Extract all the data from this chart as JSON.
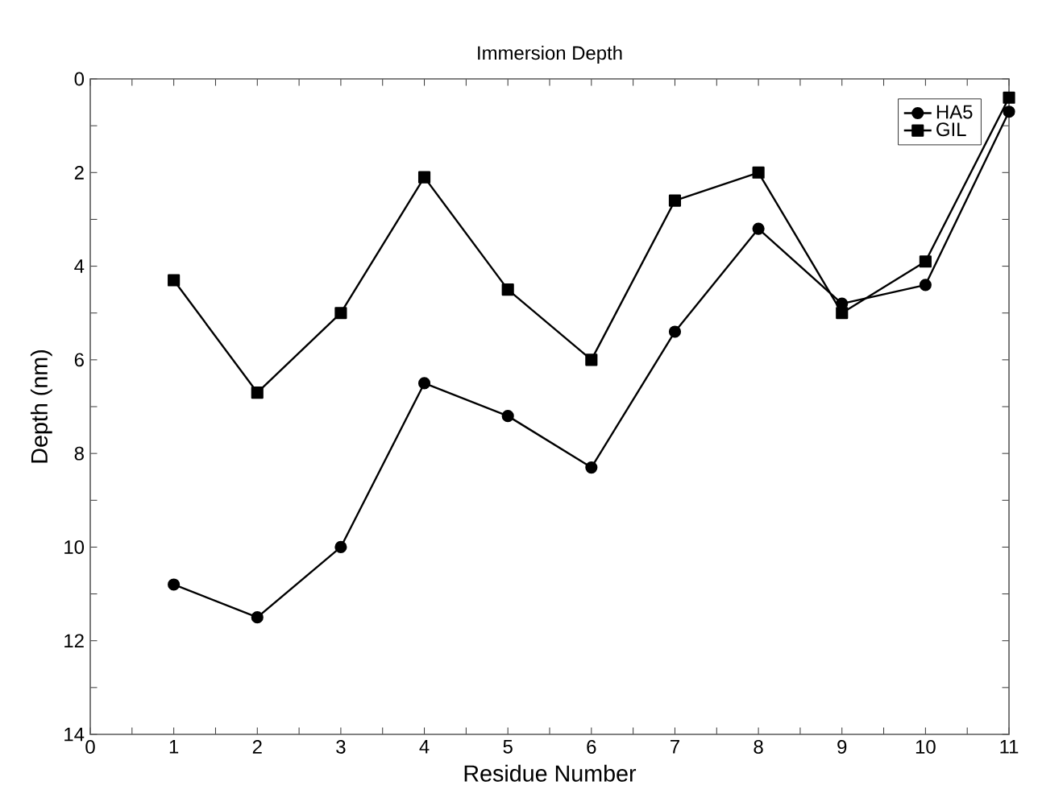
{
  "chart_data": {
    "type": "line",
    "title": "Immersion Depth",
    "xlabel": "Residue Number",
    "ylabel": "Depth (nm)",
    "x": [
      1,
      2,
      3,
      4,
      5,
      6,
      7,
      8,
      9,
      10,
      11
    ],
    "series": [
      {
        "name": "HA5",
        "color": "#000000",
        "marker": "circle",
        "values": [
          10.8,
          11.5,
          10.0,
          6.5,
          7.2,
          8.3,
          5.4,
          3.2,
          4.8,
          4.4,
          0.7
        ]
      },
      {
        "name": "GIL",
        "color": "#000000",
        "marker": "square",
        "values": [
          4.3,
          6.7,
          5.0,
          2.1,
          4.5,
          6.0,
          2.6,
          2.0,
          5.0,
          3.9,
          0.4
        ]
      }
    ],
    "xlim": [
      0,
      11
    ],
    "ylim": [
      14,
      0
    ],
    "xticks": [
      0,
      {
        "value": 0.5,
        "label": null
      },
      1,
      {
        "value": 1.5,
        "label": null
      },
      2,
      {
        "value": 2.5,
        "label": null
      },
      3,
      {
        "value": 3.5,
        "label": null
      },
      4,
      {
        "value": 4.5,
        "label": null
      },
      5,
      {
        "value": 5.5,
        "label": null
      },
      6,
      {
        "value": 6.5,
        "label": null
      },
      7,
      {
        "value": 7.5,
        "label": null
      },
      8,
      {
        "value": 8.5,
        "label": null
      },
      9,
      {
        "value": 9.5,
        "label": null
      },
      10,
      {
        "value": 10.5,
        "label": null
      },
      11
    ],
    "yticks": [
      0,
      {
        "value": 1,
        "label": null
      },
      2,
      {
        "value": 3,
        "label": null
      },
      4,
      {
        "value": 5,
        "label": null
      },
      6,
      {
        "value": 7,
        "label": null
      },
      8,
      {
        "value": 9,
        "label": null
      },
      10,
      {
        "value": 11,
        "label": null
      },
      12,
      {
        "value": 13,
        "label": null
      },
      14
    ],
    "grid": false,
    "legend": "top right",
    "line_style": "solid"
  }
}
